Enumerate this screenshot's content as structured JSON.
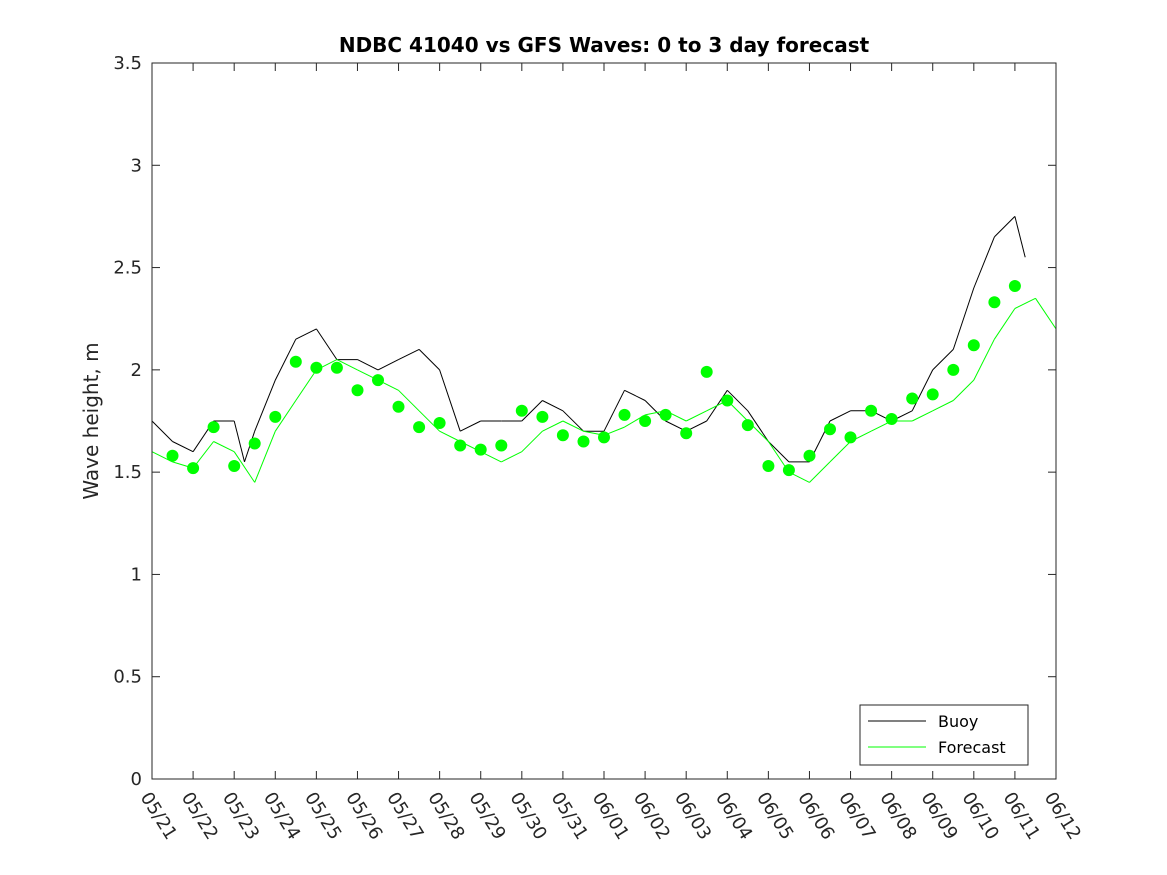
{
  "chart_data": {
    "type": "line",
    "title": "NDBC 41040 vs GFS Waves: 0 to 3 day forecast",
    "xlabel": "",
    "ylabel": "Wave height, m",
    "xlim": [
      "05/21",
      "06/12"
    ],
    "ylim": [
      0,
      3.5
    ],
    "x_tick_labels": [
      "05/21",
      "05/22",
      "05/23",
      "05/24",
      "05/25",
      "05/26",
      "05/27",
      "05/28",
      "05/29",
      "05/30",
      "05/31",
      "06/01",
      "06/02",
      "06/03",
      "06/04",
      "06/05",
      "06/06",
      "06/07",
      "06/08",
      "06/09",
      "06/10",
      "06/11",
      "06/12"
    ],
    "y_tick_labels": [
      "0",
      "0.5",
      "1",
      "1.5",
      "2",
      "2.5",
      "3",
      "3.5"
    ],
    "grid": false,
    "legend_position": "bottom-right",
    "colors": {
      "buoy": "#000000",
      "forecast": "#00ff00"
    },
    "series": [
      {
        "name": "Buoy",
        "style": "line",
        "x": [
          "05/21 00:00",
          "05/21 12:00",
          "05/22 00:00",
          "05/22 12:00",
          "05/23 00:00",
          "05/23 06:00",
          "05/23 12:00",
          "05/24 00:00",
          "05/24 12:00",
          "05/25 00:00",
          "05/25 12:00",
          "05/26 00:00",
          "05/26 12:00",
          "05/27 00:00",
          "05/27 12:00",
          "05/28 00:00",
          "05/28 12:00",
          "05/29 00:00",
          "05/29 12:00",
          "05/30 00:00",
          "05/30 12:00",
          "05/31 00:00",
          "05/31 12:00",
          "06/01 00:00",
          "06/01 12:00",
          "06/02 00:00",
          "06/02 12:00",
          "06/03 00:00",
          "06/03 12:00",
          "06/04 00:00",
          "06/04 12:00",
          "06/05 00:00",
          "06/05 12:00",
          "06/06 00:00",
          "06/06 12:00",
          "06/07 00:00",
          "06/07 12:00",
          "06/08 00:00",
          "06/08 12:00",
          "06/09 00:00",
          "06/09 12:00",
          "06/10 00:00",
          "06/10 12:00",
          "06/11 00:00",
          "06/11 06:00"
        ],
        "y": [
          1.75,
          1.65,
          1.6,
          1.75,
          1.75,
          1.55,
          1.7,
          1.95,
          2.15,
          2.2,
          2.05,
          2.05,
          2.0,
          2.05,
          2.1,
          2.0,
          1.7,
          1.75,
          1.75,
          1.75,
          1.85,
          1.8,
          1.7,
          1.7,
          1.9,
          1.85,
          1.75,
          1.7,
          1.75,
          1.9,
          1.8,
          1.65,
          1.55,
          1.55,
          1.75,
          1.8,
          1.8,
          1.75,
          1.8,
          2.0,
          2.1,
          2.4,
          2.65,
          2.75,
          2.55
        ]
      },
      {
        "name": "Forecast",
        "style": "line",
        "x": [
          "05/21 00:00",
          "05/21 12:00",
          "05/22 00:00",
          "05/22 12:00",
          "05/23 00:00",
          "05/23 12:00",
          "05/24 00:00",
          "05/24 12:00",
          "05/25 00:00",
          "05/25 12:00",
          "05/26 00:00",
          "05/26 12:00",
          "05/27 00:00",
          "05/27 12:00",
          "05/28 00:00",
          "05/28 12:00",
          "05/29 00:00",
          "05/29 12:00",
          "05/30 00:00",
          "05/30 12:00",
          "05/31 00:00",
          "05/31 12:00",
          "06/01 00:00",
          "06/01 12:00",
          "06/02 00:00",
          "06/02 12:00",
          "06/03 00:00",
          "06/03 12:00",
          "06/04 00:00",
          "06/04 12:00",
          "06/05 00:00",
          "06/05 12:00",
          "06/06 00:00",
          "06/06 12:00",
          "06/07 00:00",
          "06/07 12:00",
          "06/08 00:00",
          "06/08 12:00",
          "06/09 00:00",
          "06/09 12:00",
          "06/10 00:00",
          "06/10 12:00",
          "06/11 00:00",
          "06/11 12:00",
          "06/12 00:00"
        ],
        "y": [
          1.6,
          1.55,
          1.52,
          1.65,
          1.6,
          1.45,
          1.7,
          1.85,
          2.0,
          2.05,
          2.0,
          1.95,
          1.9,
          1.8,
          1.7,
          1.65,
          1.6,
          1.55,
          1.6,
          1.7,
          1.75,
          1.7,
          1.68,
          1.72,
          1.78,
          1.8,
          1.75,
          1.8,
          1.85,
          1.75,
          1.65,
          1.5,
          1.45,
          1.55,
          1.65,
          1.7,
          1.75,
          1.75,
          1.8,
          1.85,
          1.95,
          2.15,
          2.3,
          2.35,
          2.2
        ]
      },
      {
        "name": "",
        "style": "markers",
        "x": [
          "05/21 12:00",
          "05/22 00:00",
          "05/22 12:00",
          "05/23 00:00",
          "05/23 12:00",
          "05/24 00:00",
          "05/24 12:00",
          "05/25 00:00",
          "05/25 12:00",
          "05/26 00:00",
          "05/26 12:00",
          "05/27 00:00",
          "05/27 12:00",
          "05/28 00:00",
          "05/28 12:00",
          "05/29 00:00",
          "05/29 12:00",
          "05/30 00:00",
          "05/30 12:00",
          "05/31 00:00",
          "05/31 12:00",
          "06/01 00:00",
          "06/01 12:00",
          "06/02 00:00",
          "06/02 12:00",
          "06/03 00:00",
          "06/03 12:00",
          "06/04 00:00",
          "06/04 12:00",
          "06/05 00:00",
          "06/05 12:00",
          "06/06 00:00",
          "06/06 12:00",
          "06/07 00:00",
          "06/07 12:00",
          "06/08 00:00",
          "06/08 12:00",
          "06/09 00:00",
          "06/09 12:00",
          "06/10 00:00",
          "06/10 12:00",
          "06/11 00:00"
        ],
        "y": [
          1.58,
          1.52,
          1.72,
          1.53,
          1.64,
          1.77,
          2.04,
          2.01,
          2.01,
          1.9,
          1.95,
          1.82,
          1.72,
          1.74,
          1.63,
          1.61,
          1.63,
          1.8,
          1.77,
          1.68,
          1.65,
          1.67,
          1.78,
          1.75,
          1.78,
          1.69,
          1.99,
          1.85,
          1.73,
          1.53,
          1.51,
          1.58,
          1.71,
          1.67,
          1.8,
          1.76,
          1.86,
          1.88,
          2.0,
          2.12,
          2.33,
          2.41
        ]
      }
    ],
    "legend": [
      {
        "label": "Buoy",
        "color": "#000000"
      },
      {
        "label": "Forecast",
        "color": "#00ff00"
      }
    ]
  }
}
